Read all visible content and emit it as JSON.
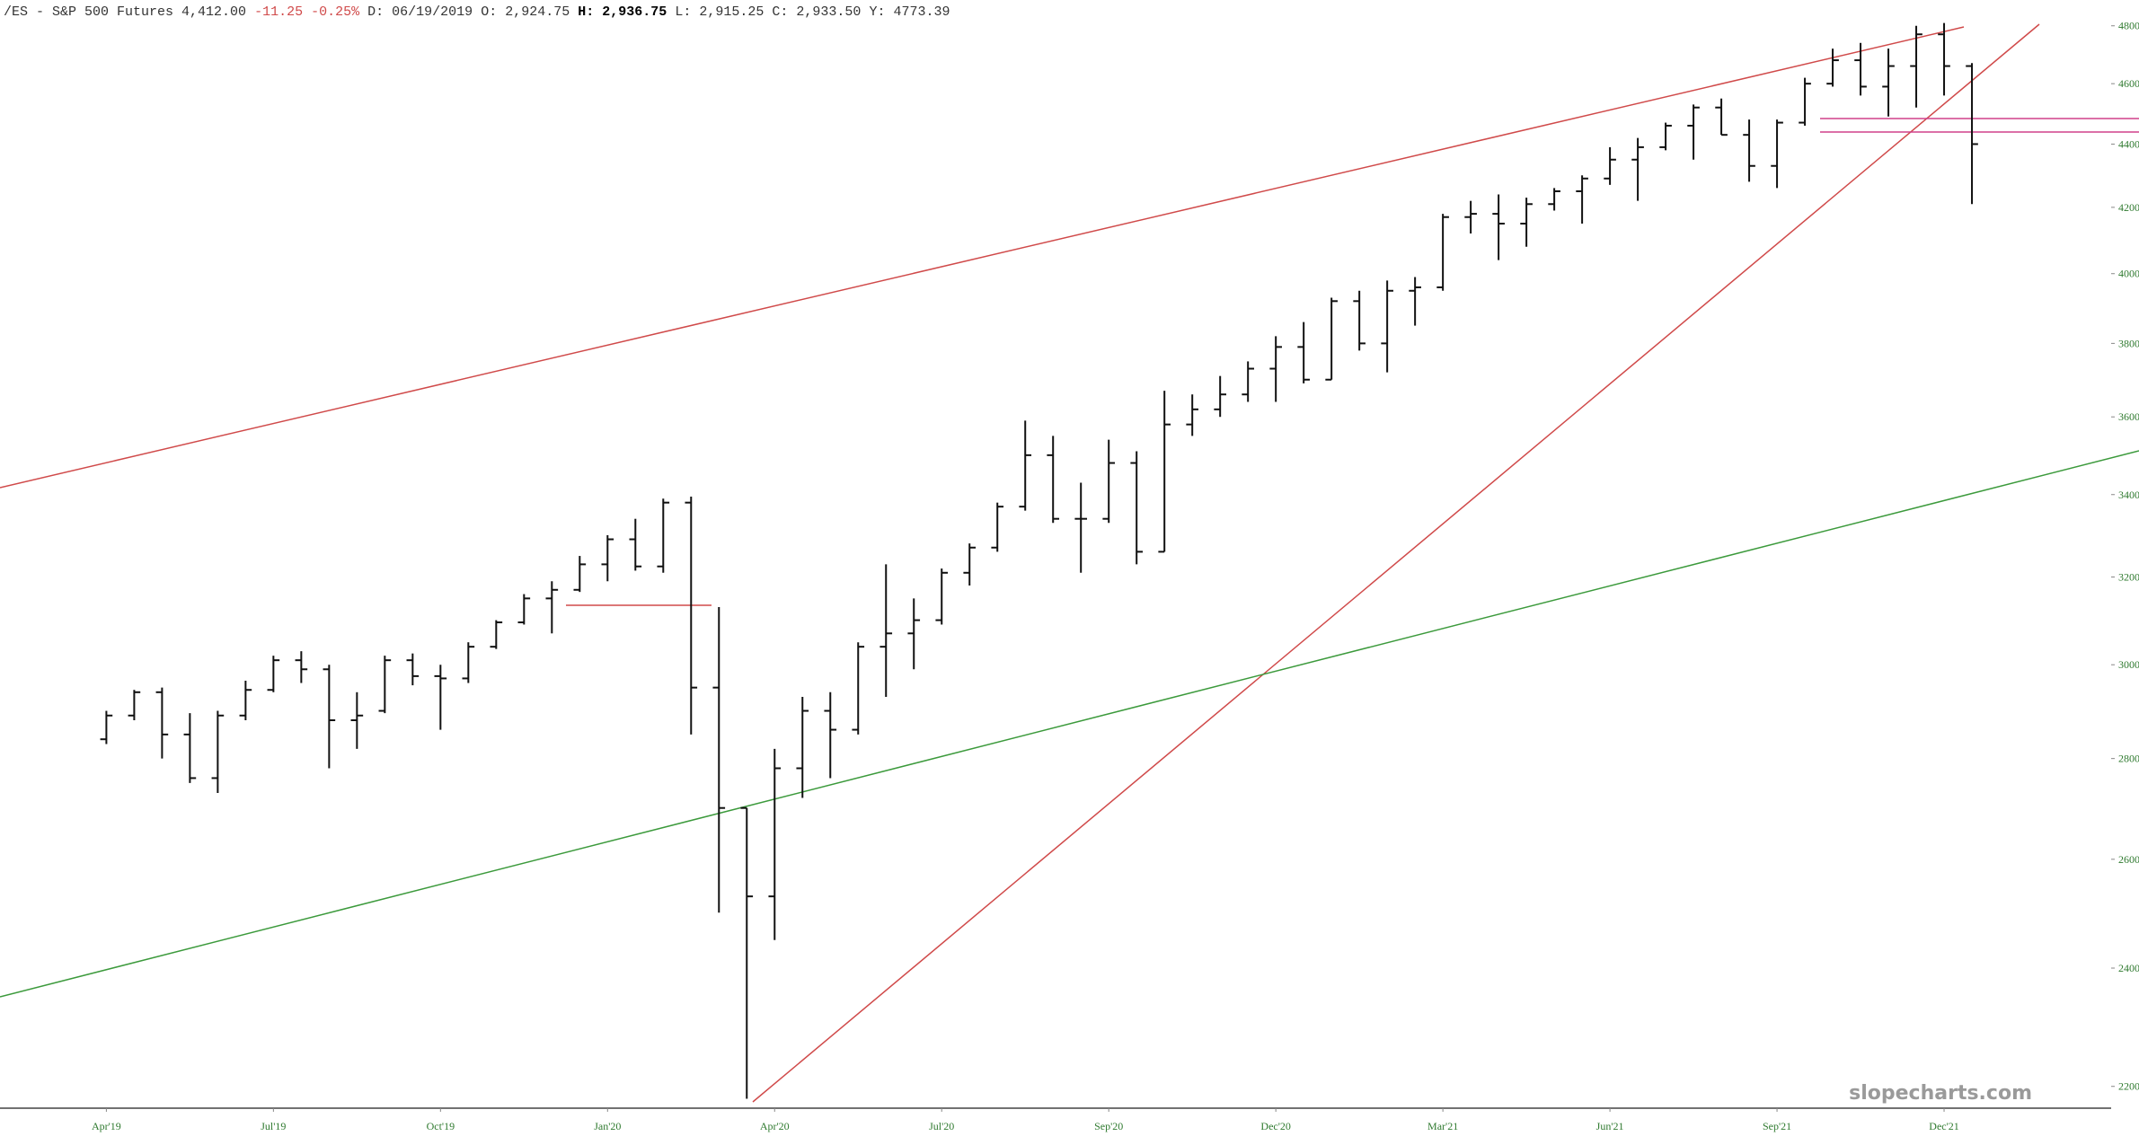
{
  "header": {
    "symbol": "/ES - S&P 500 Futures",
    "last": "4,412.00",
    "change": "-11.25",
    "change_pct": "-0.25%",
    "readouts": [
      {
        "label": "D:",
        "value": "06/19/2019"
      },
      {
        "label": "O:",
        "value": "2,924.75"
      },
      {
        "label": "H:",
        "value": "2,936.75"
      },
      {
        "label": "L:",
        "value": "2,915.25"
      },
      {
        "label": "C:",
        "value": "2,933.50"
      },
      {
        "label": "Y:",
        "value": "4773.39"
      }
    ]
  },
  "watermark": "slopecharts.com",
  "chart_data": {
    "type": "ohlc",
    "color": "#111111",
    "log_scale": true,
    "open": [
      2840,
      2890,
      2940,
      2850,
      2760,
      2890,
      2945,
      3010,
      2990,
      2880,
      2900,
      3010,
      2975,
      2970,
      3040,
      3095,
      3150,
      3170,
      3230,
      3290,
      3225,
      3380,
      2950,
      2700,
      2530,
      2780,
      2900,
      2860,
      3040,
      3070,
      3100,
      3210,
      3270,
      3370,
      3500,
      3340,
      3340,
      3480,
      3260,
      3580,
      3620,
      3660,
      3730,
      3790,
      3700,
      3920,
      3800,
      3950,
      3960,
      4170,
      4180,
      4150,
      4210,
      4250,
      4290,
      4350,
      4390,
      4460,
      4520,
      4430,
      4330,
      4470,
      4600,
      4680,
      4590,
      4660,
      4770,
      4660
    ],
    "high": [
      2900,
      2945,
      2950,
      2895,
      2900,
      2965,
      3020,
      3030,
      3000,
      2940,
      3020,
      3025,
      3000,
      3050,
      3100,
      3160,
      3190,
      3250,
      3300,
      3340,
      3390,
      3395,
      3130,
      2700,
      2820,
      2930,
      2940,
      3050,
      3230,
      3150,
      3220,
      3280,
      3380,
      3590,
      3550,
      3430,
      3540,
      3510,
      3670,
      3660,
      3710,
      3750,
      3820,
      3860,
      3930,
      3950,
      3980,
      3990,
      4180,
      4220,
      4240,
      4230,
      4260,
      4300,
      4390,
      4420,
      4470,
      4530,
      4550,
      4480,
      4480,
      4620,
      4720,
      4740,
      4720,
      4800,
      4810,
      4670
    ],
    "low": [
      2830,
      2880,
      2800,
      2750,
      2730,
      2880,
      2940,
      2960,
      2780,
      2820,
      2895,
      2955,
      2860,
      2960,
      3035,
      3090,
      3070,
      3165,
      3190,
      3215,
      3210,
      2850,
      2500,
      2180,
      2450,
      2720,
      2760,
      2850,
      2930,
      2990,
      3090,
      3180,
      3260,
      3360,
      3330,
      3210,
      3330,
      3230,
      3260,
      3550,
      3600,
      3640,
      3640,
      3690,
      3700,
      3780,
      3720,
      3850,
      3950,
      4120,
      4040,
      4080,
      4190,
      4150,
      4270,
      4220,
      4380,
      4350,
      4430,
      4280,
      4260,
      4460,
      4590,
      4560,
      4490,
      4520,
      4560,
      4210
    ],
    "close": [
      2890,
      2940,
      2850,
      2760,
      2890,
      2945,
      3010,
      2990,
      2880,
      2890,
      3010,
      2975,
      2970,
      3040,
      3095,
      3150,
      3170,
      3230,
      3290,
      3225,
      3380,
      2950,
      2700,
      2530,
      2780,
      2900,
      2860,
      3040,
      3070,
      3100,
      3210,
      3270,
      3370,
      3500,
      3340,
      3340,
      3480,
      3260,
      3580,
      3620,
      3660,
      3730,
      3790,
      3700,
      3920,
      3800,
      3950,
      3960,
      4170,
      4180,
      4150,
      4210,
      4250,
      4290,
      4350,
      4390,
      4460,
      4520,
      4430,
      4330,
      4470,
      4600,
      4680,
      4590,
      4660,
      4770,
      4660,
      4400
    ],
    "xlim": [
      -3.82,
      72
    ],
    "xticks": [
      {
        "value": 0,
        "label": "Apr'19"
      },
      {
        "value": 6,
        "label": "Jul'19"
      },
      {
        "value": 12,
        "label": "Oct'19"
      },
      {
        "value": 18,
        "label": "Jan'20"
      },
      {
        "value": 24,
        "label": "Apr'20"
      },
      {
        "value": 30,
        "label": "Jul'20"
      },
      {
        "value": 36,
        "label": "Sep'20"
      },
      {
        "value": 42,
        "label": "Dec'20"
      },
      {
        "value": 48,
        "label": "Mar'21"
      },
      {
        "value": 54,
        "label": "Jun'21"
      },
      {
        "value": 60,
        "label": "Sep'21"
      },
      {
        "value": 66,
        "label": "Dec'21"
      }
    ],
    "ylim": [
      2165,
      4892
    ],
    "yticks": [
      2200,
      2400,
      2600,
      2800,
      3000,
      3200,
      3400,
      3600,
      3800,
      4000,
      4200,
      4400,
      4600,
      4800
    ]
  }
}
